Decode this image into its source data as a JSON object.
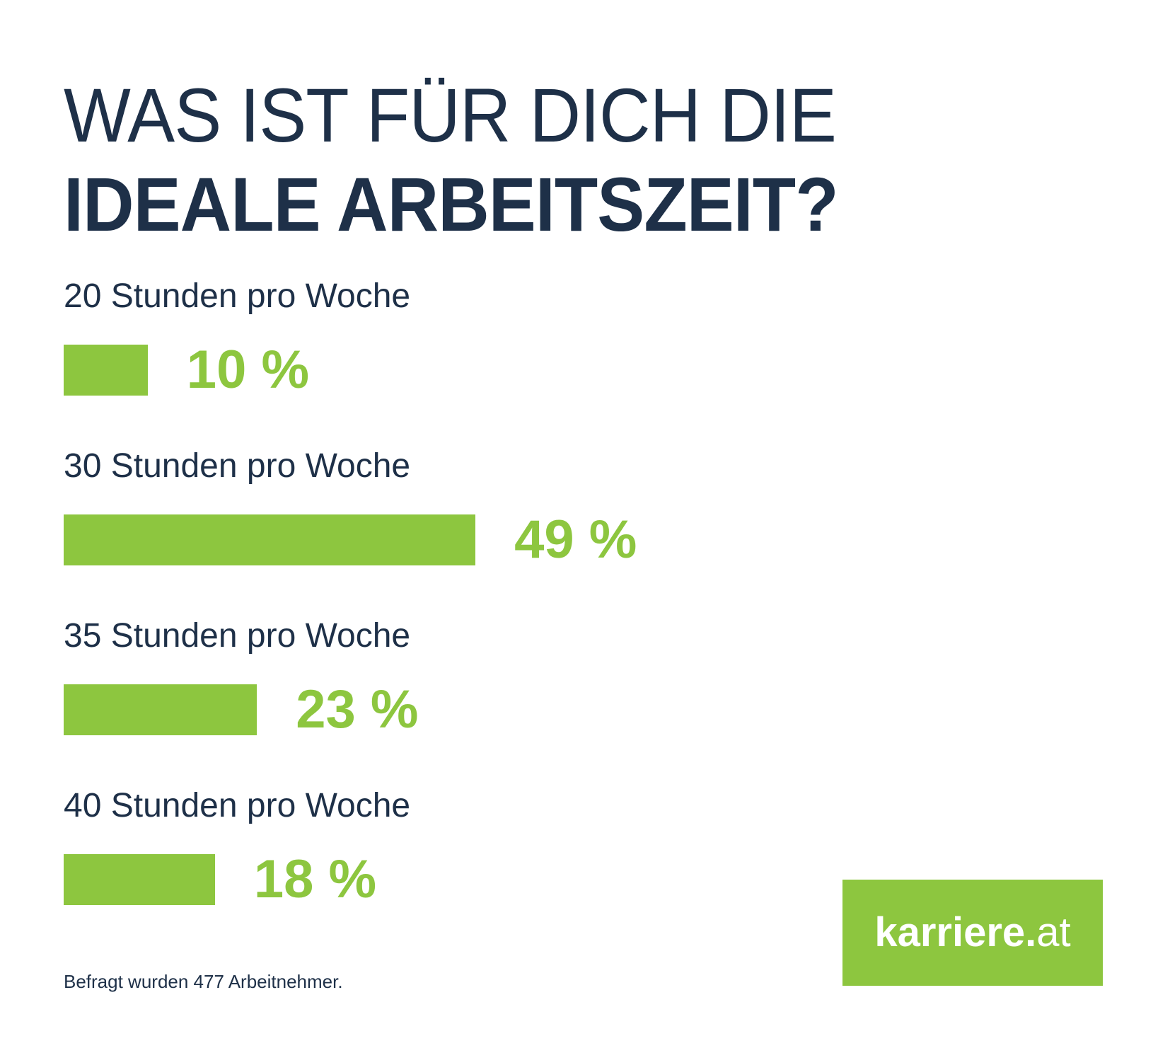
{
  "title": {
    "line1": "WAS IST FÜR DICH DIE",
    "line2": "IDEALE ARBEITSZEIT?"
  },
  "chart_data": {
    "type": "bar",
    "orientation": "horizontal",
    "title": "Was ist für dich die ideale Arbeitszeit?",
    "categories": [
      "20 Stunden pro Woche",
      "30 Stunden pro Woche",
      "35 Stunden pro Woche",
      "40 Stunden pro Woche"
    ],
    "values": [
      10,
      49,
      23,
      18
    ],
    "value_labels": [
      "10 %",
      "49 %",
      "23 %",
      "18 %"
    ],
    "unit": "%",
    "xlim": [
      0,
      100
    ],
    "grid": false,
    "legend": "none",
    "bar_color": "#8DC63F",
    "value_label_position": "right-of-bar"
  },
  "footer": {
    "note": "Befragt wurden 477 Arbeitnehmer."
  },
  "logo": {
    "text_bold": "karriere.",
    "text_light": "at",
    "full_name": "karriere.at",
    "background": "#8DC63F",
    "text_color": "#FFFFFF"
  },
  "colors": {
    "background": "#FFFFFF",
    "accent_green": "#8DC63F",
    "navy": "#1E3048"
  }
}
